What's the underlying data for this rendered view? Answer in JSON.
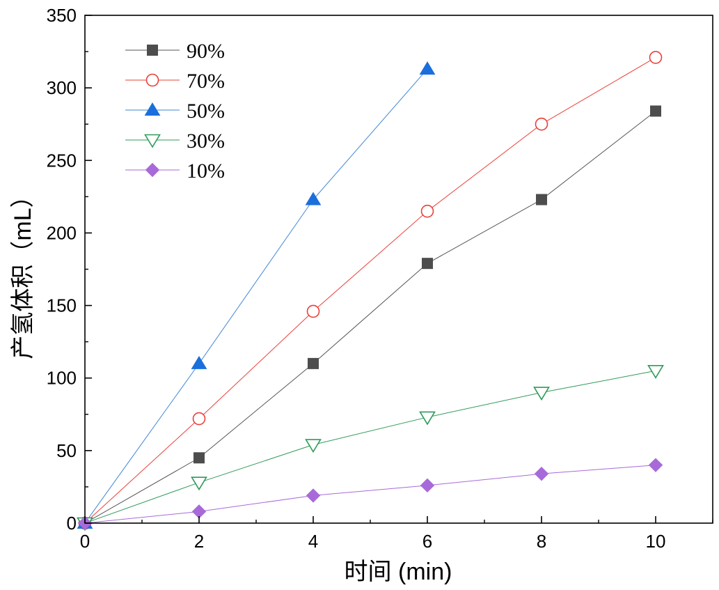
{
  "chart_data": {
    "type": "line",
    "xlabel": "时间 (min)",
    "ylabel": "产氢体积（mL）",
    "xlim": [
      0,
      11
    ],
    "ylim": [
      0,
      350
    ],
    "xticks": [
      0,
      2,
      4,
      6,
      8,
      10
    ],
    "xticks_minor": [
      1,
      3,
      5,
      7,
      9,
      11
    ],
    "yticks": [
      0,
      50,
      100,
      150,
      200,
      250,
      300,
      350
    ],
    "yticks_minor": [
      25,
      75,
      125,
      175,
      225,
      275,
      325
    ],
    "legend_position": "top-left",
    "grid": false,
    "series": [
      {
        "name": "90%",
        "marker": "square",
        "filled": true,
        "color": "#4d4d4d",
        "line_color": "#555555",
        "x": [
          0,
          2,
          4,
          6,
          8,
          10
        ],
        "y": [
          0,
          45,
          110,
          179,
          223,
          284
        ]
      },
      {
        "name": "70%",
        "marker": "circle",
        "filled": false,
        "color": "#e8413a",
        "line_color": "#e8413a",
        "x": [
          0,
          2,
          4,
          6,
          8,
          10
        ],
        "y": [
          0,
          72,
          146,
          215,
          275,
          321
        ]
      },
      {
        "name": "50%",
        "marker": "triangle-up",
        "filled": true,
        "color": "#1a6fdc",
        "line_color": "#3f86d6",
        "x": [
          0,
          2,
          4,
          6
        ],
        "y": [
          0,
          110,
          223,
          313
        ]
      },
      {
        "name": "30%",
        "marker": "triangle-down",
        "filled": false,
        "color": "#2e9a5a",
        "line_color": "#2e9a5a",
        "x": [
          0,
          2,
          4,
          6,
          8,
          10
        ],
        "y": [
          0,
          28,
          54,
          73,
          90,
          105
        ]
      },
      {
        "name": "10%",
        "marker": "diamond",
        "filled": true,
        "color": "#a86ad8",
        "line_color": "#a86ad8",
        "x": [
          0,
          2,
          4,
          6,
          8,
          10
        ],
        "y": [
          0,
          8,
          19,
          26,
          34,
          40
        ]
      }
    ]
  }
}
